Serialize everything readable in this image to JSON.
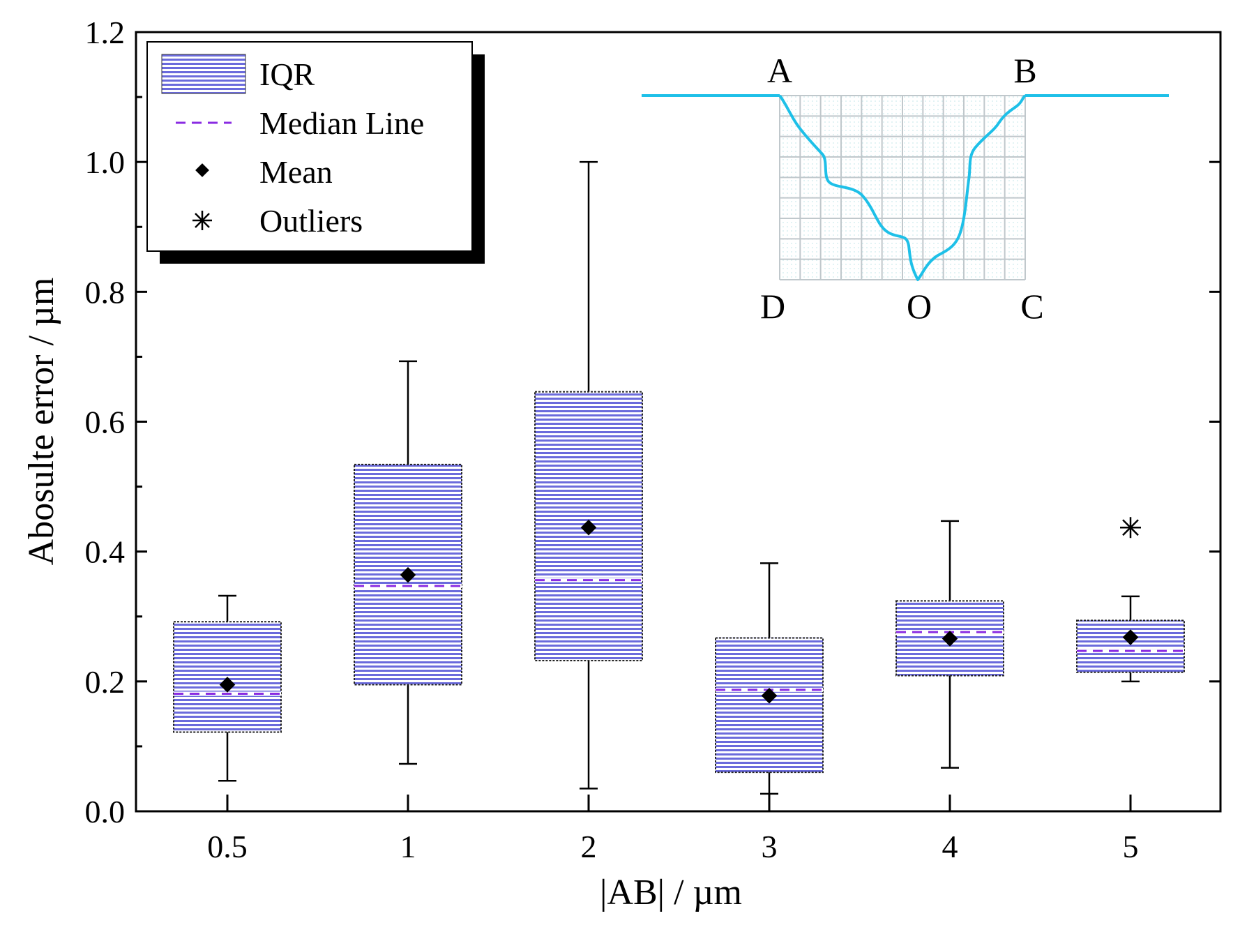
{
  "chart_data": {
    "type": "box",
    "xlabel": "|AB| / µm",
    "ylabel": "Abosulte error / µm",
    "ylim": [
      0,
      1.2
    ],
    "y_ticks": [
      "0.0",
      "0.2",
      "0.4",
      "0.6",
      "0.8",
      "1.0",
      "1.2"
    ],
    "categories": [
      "0.5",
      "1",
      "2",
      "3",
      "4",
      "5"
    ],
    "boxes": [
      {
        "category": "0.5",
        "min": 0.047,
        "q1": 0.122,
        "median": 0.181,
        "q3": 0.292,
        "max": 0.332,
        "mean": 0.195,
        "outliers": []
      },
      {
        "category": "1",
        "min": 0.073,
        "q1": 0.195,
        "median": 0.347,
        "q3": 0.534,
        "max": 0.693,
        "mean": 0.364,
        "outliers": []
      },
      {
        "category": "2",
        "min": 0.035,
        "q1": 0.232,
        "median": 0.356,
        "q3": 0.646,
        "max": 1.0,
        "mean": 0.437,
        "outliers": []
      },
      {
        "category": "3",
        "min": 0.027,
        "q1": 0.06,
        "median": 0.187,
        "q3": 0.267,
        "max": 0.382,
        "mean": 0.178,
        "outliers": []
      },
      {
        "category": "4",
        "min": 0.067,
        "q1": 0.209,
        "median": 0.276,
        "q3": 0.324,
        "max": 0.447,
        "mean": 0.266,
        "outliers": []
      },
      {
        "category": "5",
        "min": 0.2,
        "q1": 0.214,
        "median": 0.247,
        "q3": 0.294,
        "max": 0.331,
        "mean": 0.268,
        "outliers": [
          0.437
        ]
      }
    ],
    "legend": {
      "position": "top-left",
      "entries": [
        "IQR",
        "Median Line",
        "Mean",
        "Outliers"
      ]
    },
    "inset": {
      "labels": {
        "a": "A",
        "b": "B",
        "c": "C",
        "d": "D",
        "o": "O"
      }
    },
    "colors": {
      "box_stripe": "#6b6bdc",
      "median": "#8a2be2",
      "inset_curve": "#1ec0e8",
      "inset_grid": "#c0c8cc"
    }
  }
}
